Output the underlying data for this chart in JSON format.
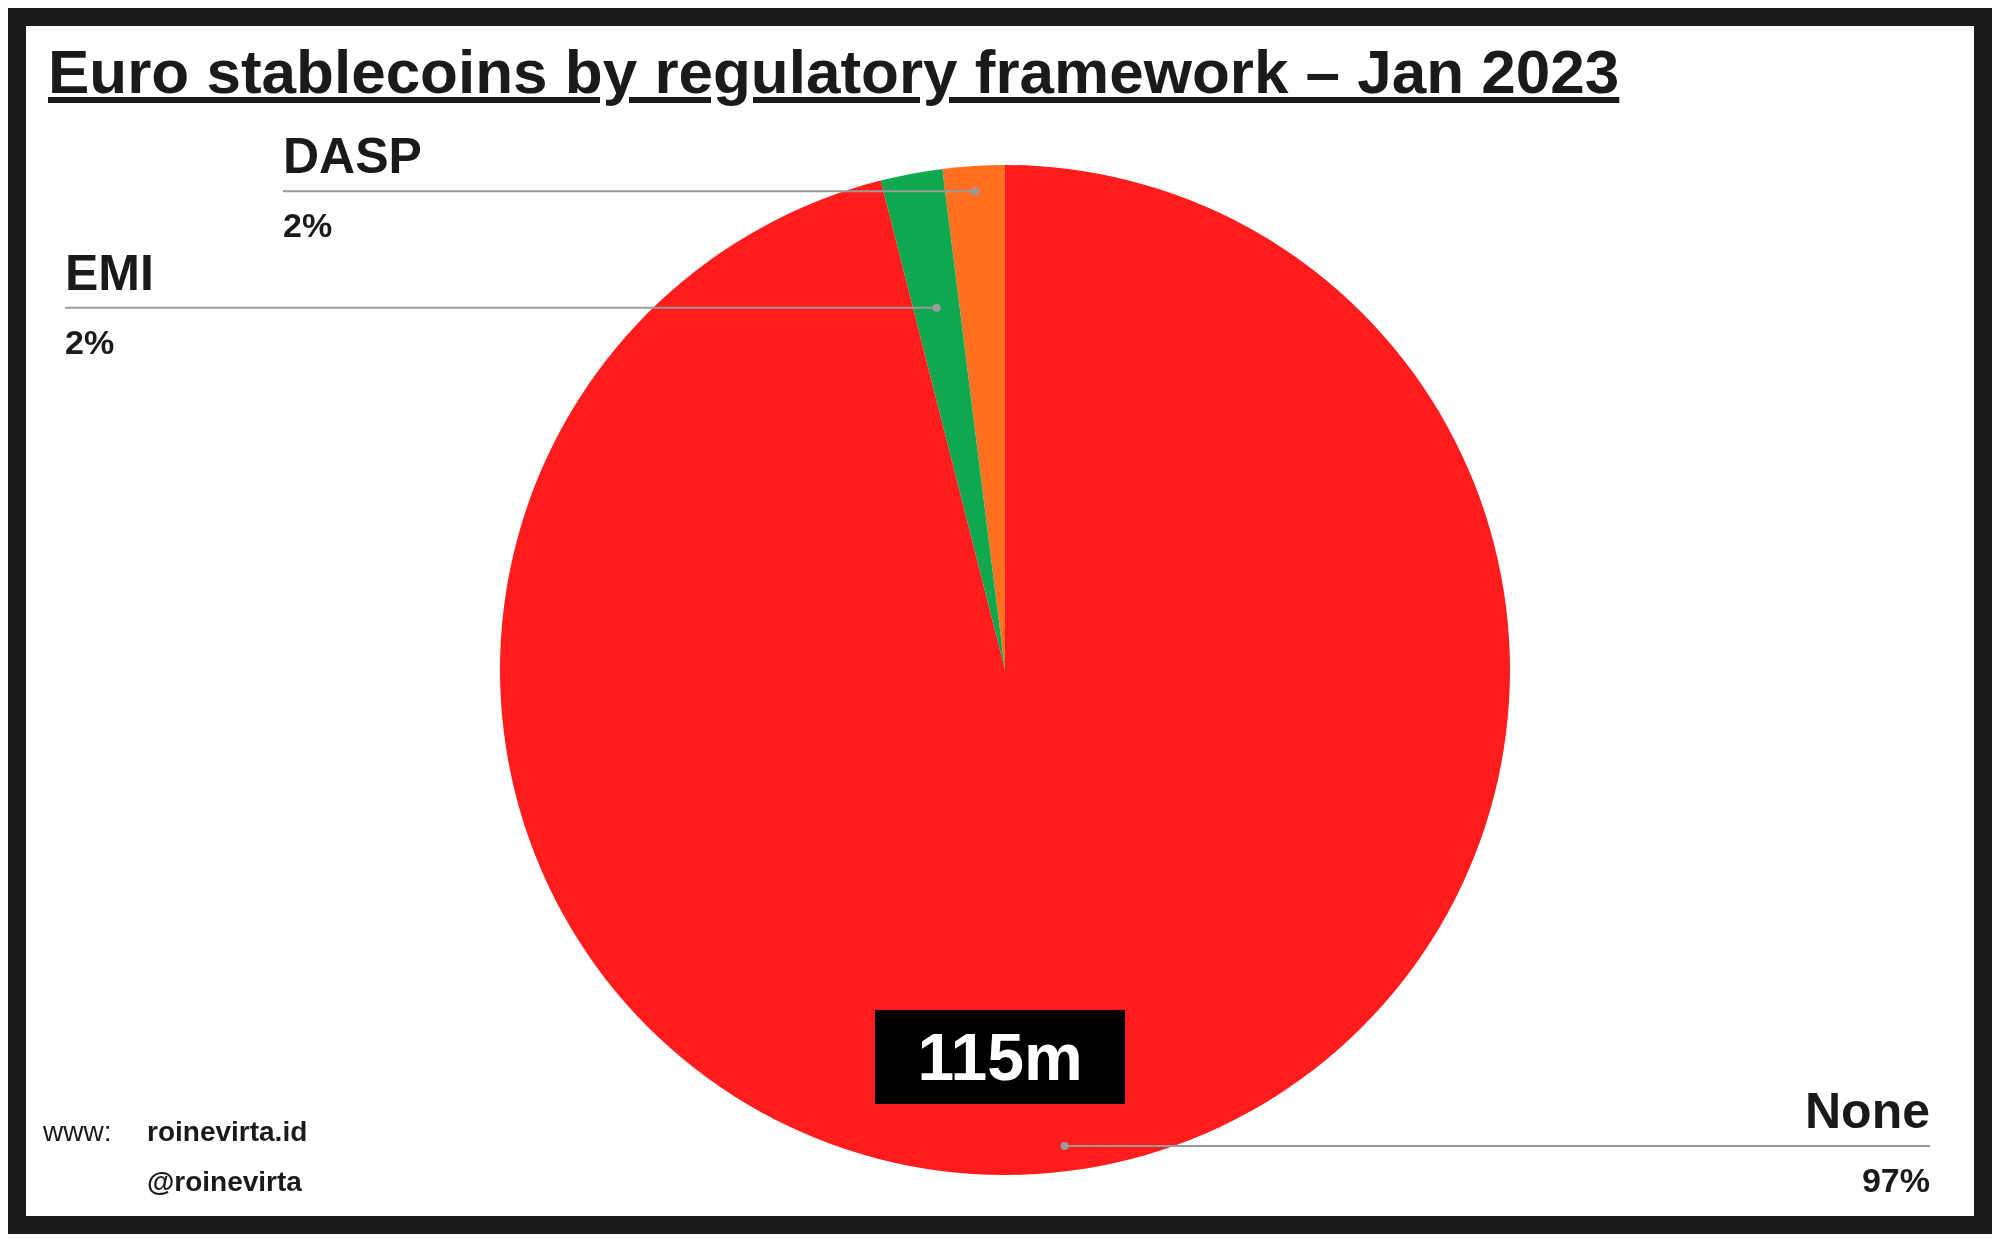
{
  "chart_data": {
    "type": "pie",
    "title": "Euro stablecoins by regulatory framework – Jan 2023",
    "categories": [
      "DASP",
      "EMI",
      "None"
    ],
    "values": [
      2,
      2,
      97
    ],
    "value_labels": [
      "2%",
      "2%",
      "97%"
    ],
    "colors": [
      "#ff7020",
      "#0fa84e",
      "#ff1c1c"
    ],
    "annotations": [
      "115m",
      "www:",
      "roinevirta.id",
      "@roinevirta"
    ]
  }
}
